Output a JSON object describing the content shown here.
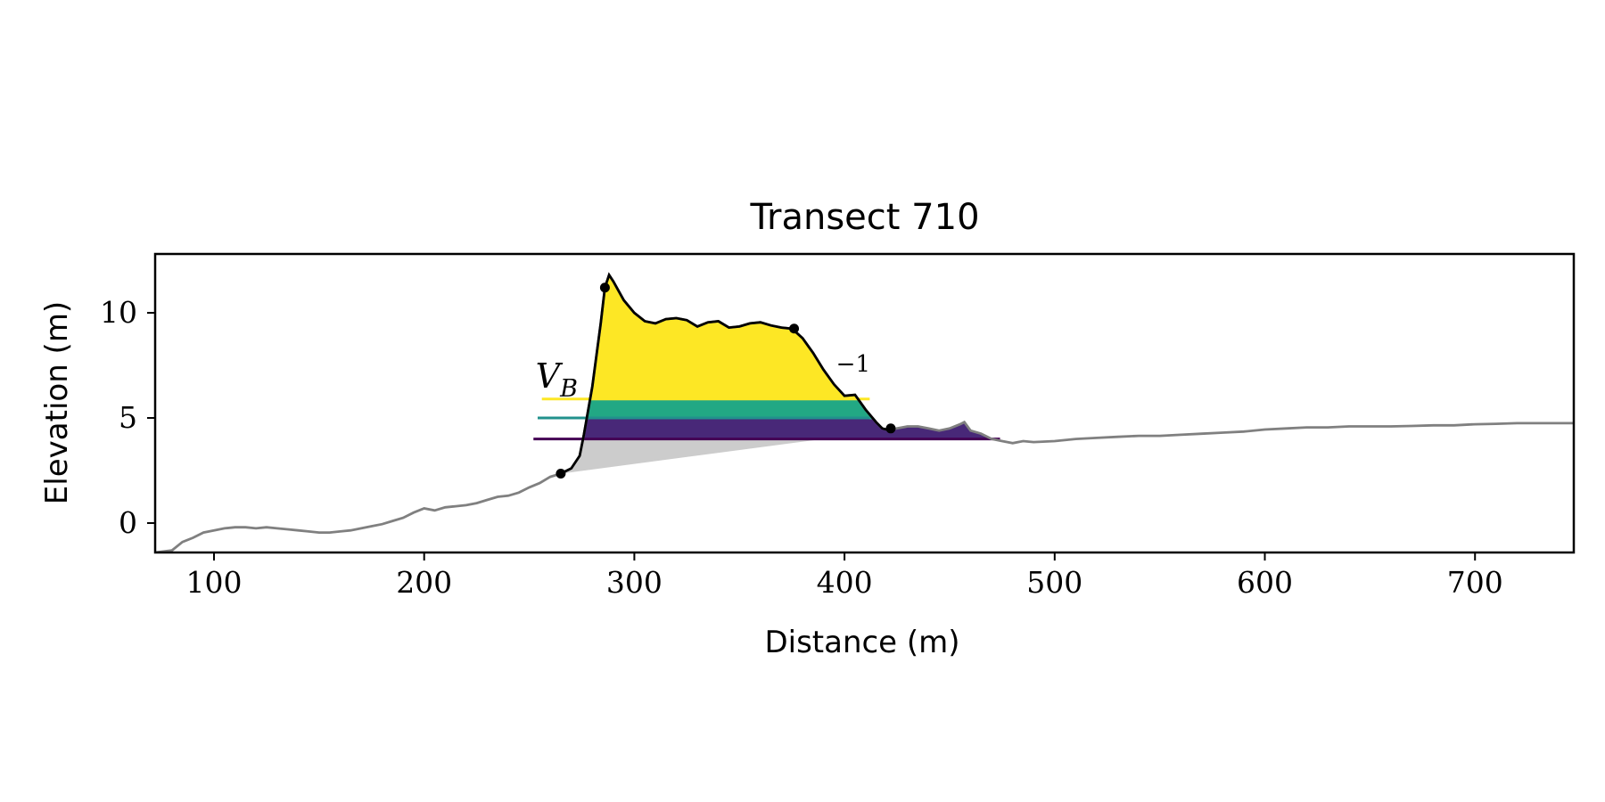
{
  "chart_data": {
    "type": "area",
    "title": "Transect 710",
    "xlabel": "Distance (m)",
    "ylabel": "Elevation (m)",
    "xlim": [
      72,
      747
    ],
    "ylim": [
      -1.4,
      12.8
    ],
    "xticks": [
      100,
      200,
      300,
      400,
      500,
      600,
      700
    ],
    "yticks": [
      0,
      5,
      10
    ],
    "xtick_labels": [
      "100",
      "200",
      "300",
      "400",
      "500",
      "600",
      "700"
    ],
    "ytick_labels": [
      "0",
      "5",
      "10"
    ],
    "grid": false,
    "legend": "none",
    "annotation_label": "V_B",
    "annotation_suffix": "−1",
    "profile": {
      "x": [
        72,
        80,
        85,
        90,
        95,
        100,
        105,
        110,
        115,
        120,
        125,
        130,
        135,
        140,
        145,
        150,
        155,
        160,
        165,
        170,
        175,
        180,
        185,
        190,
        195,
        200,
        205,
        210,
        215,
        220,
        225,
        230,
        235,
        240,
        245,
        250,
        255,
        260,
        265,
        270,
        274,
        276,
        280,
        284,
        286,
        288,
        290,
        295,
        300,
        305,
        310,
        315,
        320,
        325,
        330,
        335,
        340,
        345,
        350,
        355,
        360,
        365,
        370,
        375,
        380,
        385,
        390,
        395,
        400,
        405,
        410,
        415,
        418,
        420,
        422,
        430,
        435,
        440,
        445,
        450,
        455,
        457,
        460,
        465,
        470,
        475,
        480,
        485,
        490,
        500,
        510,
        520,
        530,
        540,
        550,
        560,
        570,
        580,
        590,
        600,
        610,
        620,
        630,
        640,
        650,
        660,
        670,
        680,
        690,
        700,
        710,
        720,
        730,
        747
      ],
      "y": [
        -1.4,
        -1.3,
        -0.9,
        -0.7,
        -0.45,
        -0.35,
        -0.25,
        -0.2,
        -0.2,
        -0.25,
        -0.2,
        -0.25,
        -0.3,
        -0.35,
        -0.4,
        -0.45,
        -0.45,
        -0.4,
        -0.35,
        -0.25,
        -0.15,
        -0.05,
        0.1,
        0.25,
        0.5,
        0.7,
        0.6,
        0.75,
        0.8,
        0.85,
        0.95,
        1.1,
        1.25,
        1.3,
        1.45,
        1.7,
        1.9,
        2.2,
        2.35,
        2.6,
        3.2,
        4.2,
        6.5,
        9.5,
        11.2,
        11.8,
        11.5,
        10.6,
        10.0,
        9.6,
        9.5,
        9.7,
        9.75,
        9.65,
        9.35,
        9.55,
        9.6,
        9.3,
        9.35,
        9.5,
        9.55,
        9.4,
        9.3,
        9.25,
        8.8,
        8.1,
        7.3,
        6.6,
        6.05,
        6.1,
        5.4,
        4.8,
        4.5,
        4.45,
        4.45,
        4.6,
        4.6,
        4.5,
        4.4,
        4.5,
        4.7,
        4.8,
        4.4,
        4.25,
        4.0,
        3.9,
        3.8,
        3.9,
        3.85,
        3.9,
        4.0,
        4.05,
        4.1,
        4.15,
        4.15,
        4.2,
        4.25,
        4.3,
        4.35,
        4.45,
        4.5,
        4.55,
        4.55,
        4.6,
        4.6,
        4.6,
        4.62,
        4.65,
        4.65,
        4.7,
        4.72,
        4.75,
        4.75,
        4.75
      ]
    },
    "highlight_range": [
      265,
      422
    ],
    "markers": [
      {
        "x": 265,
        "y": 2.35
      },
      {
        "x": 286,
        "y": 11.2
      },
      {
        "x": 376,
        "y": 9.25
      },
      {
        "x": 422,
        "y": 4.5
      }
    ],
    "levels": [
      {
        "name": "high",
        "y": 5.9,
        "x_start": 256,
        "x_end": 275,
        "color": "#fde725"
      },
      {
        "name": "mid",
        "y": 5.0,
        "x_start": 254,
        "x_end": 275,
        "color": "#21918c"
      },
      {
        "name": "low",
        "y": 4.0,
        "x_start": 252,
        "x_end": 474,
        "color": "#440154"
      }
    ],
    "base_fill": {
      "x_start": 265,
      "y_start": 2.35,
      "x_end": 390,
      "y_end": 4.0,
      "color": "#cccccc"
    },
    "band_colors": {
      "yellow": "#fde725",
      "teal": "#22a884",
      "purple": "#482878",
      "dark_purple": "#440154"
    }
  }
}
